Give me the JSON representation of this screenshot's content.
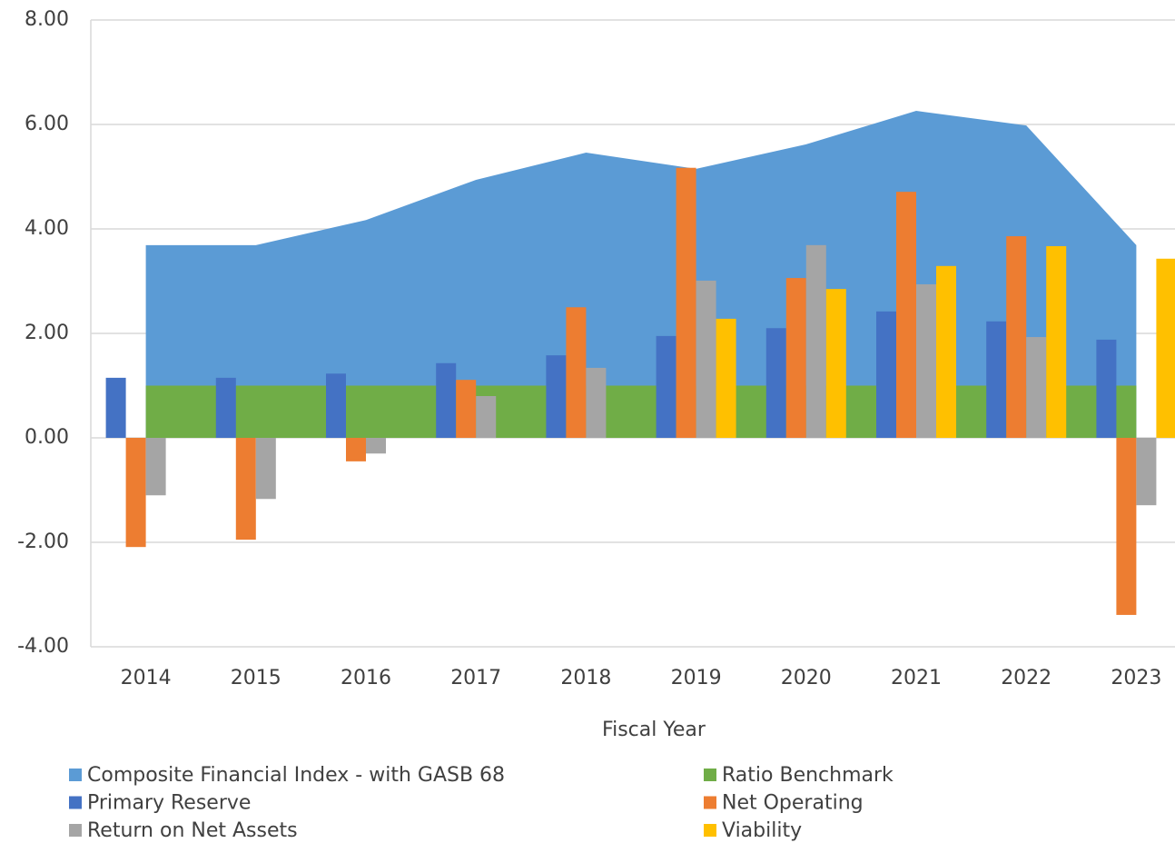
{
  "chart_data": {
    "type": "bar",
    "x_label": "Fiscal Year",
    "categories": [
      "2014",
      "2015",
      "2016",
      "2017",
      "2018",
      "2019",
      "2020",
      "2021",
      "2022",
      "2023"
    ],
    "series": [
      {
        "name": "Composite Financial Index - with GASB 68",
        "kind": "area",
        "color": "#5b9bd5",
        "values": [
          3.69,
          3.69,
          4.17,
          4.94,
          5.46,
          5.15,
          5.62,
          6.26,
          5.98,
          3.69
        ]
      },
      {
        "name": "Ratio Benchmark",
        "kind": "area",
        "color": "#70ad47",
        "values": [
          1,
          1,
          1,
          1,
          1,
          1,
          1,
          1,
          1,
          1
        ]
      },
      {
        "name": "Primary Reserve",
        "kind": "bar",
        "color": "#4472c4",
        "values": [
          1.15,
          1.15,
          1.23,
          1.43,
          1.58,
          1.95,
          2.1,
          2.42,
          2.23,
          1.88
        ]
      },
      {
        "name": "Net Operating",
        "kind": "bar",
        "color": "#ed7d31",
        "values": [
          -2.09,
          -1.95,
          -0.45,
          1.11,
          2.5,
          5.17,
          3.06,
          4.71,
          3.86,
          -3.39
        ]
      },
      {
        "name": "Return on Net Assets",
        "kind": "bar",
        "color": "#a5a5a5",
        "values": [
          -1.1,
          -1.17,
          -0.3,
          0.8,
          1.34,
          3.01,
          3.69,
          2.94,
          1.93,
          -1.29
        ]
      },
      {
        "name": "Viability",
        "kind": "bar",
        "color": "#ffc000",
        "values": [
          null,
          null,
          null,
          null,
          null,
          2.28,
          2.85,
          3.29,
          3.67,
          3.43
        ]
      }
    ],
    "ylim": [
      -4,
      8
    ],
    "yticks": [
      {
        "value": -4,
        "label": "-4.00"
      },
      {
        "value": -2,
        "label": "-2.00"
      },
      {
        "value": 0,
        "label": "0.00"
      },
      {
        "value": 2,
        "label": "2.00"
      },
      {
        "value": 4,
        "label": "4.00"
      },
      {
        "value": 6,
        "label": "6.00"
      },
      {
        "value": 8,
        "label": "8.00"
      }
    ],
    "grid": true,
    "legend": "bottom"
  }
}
